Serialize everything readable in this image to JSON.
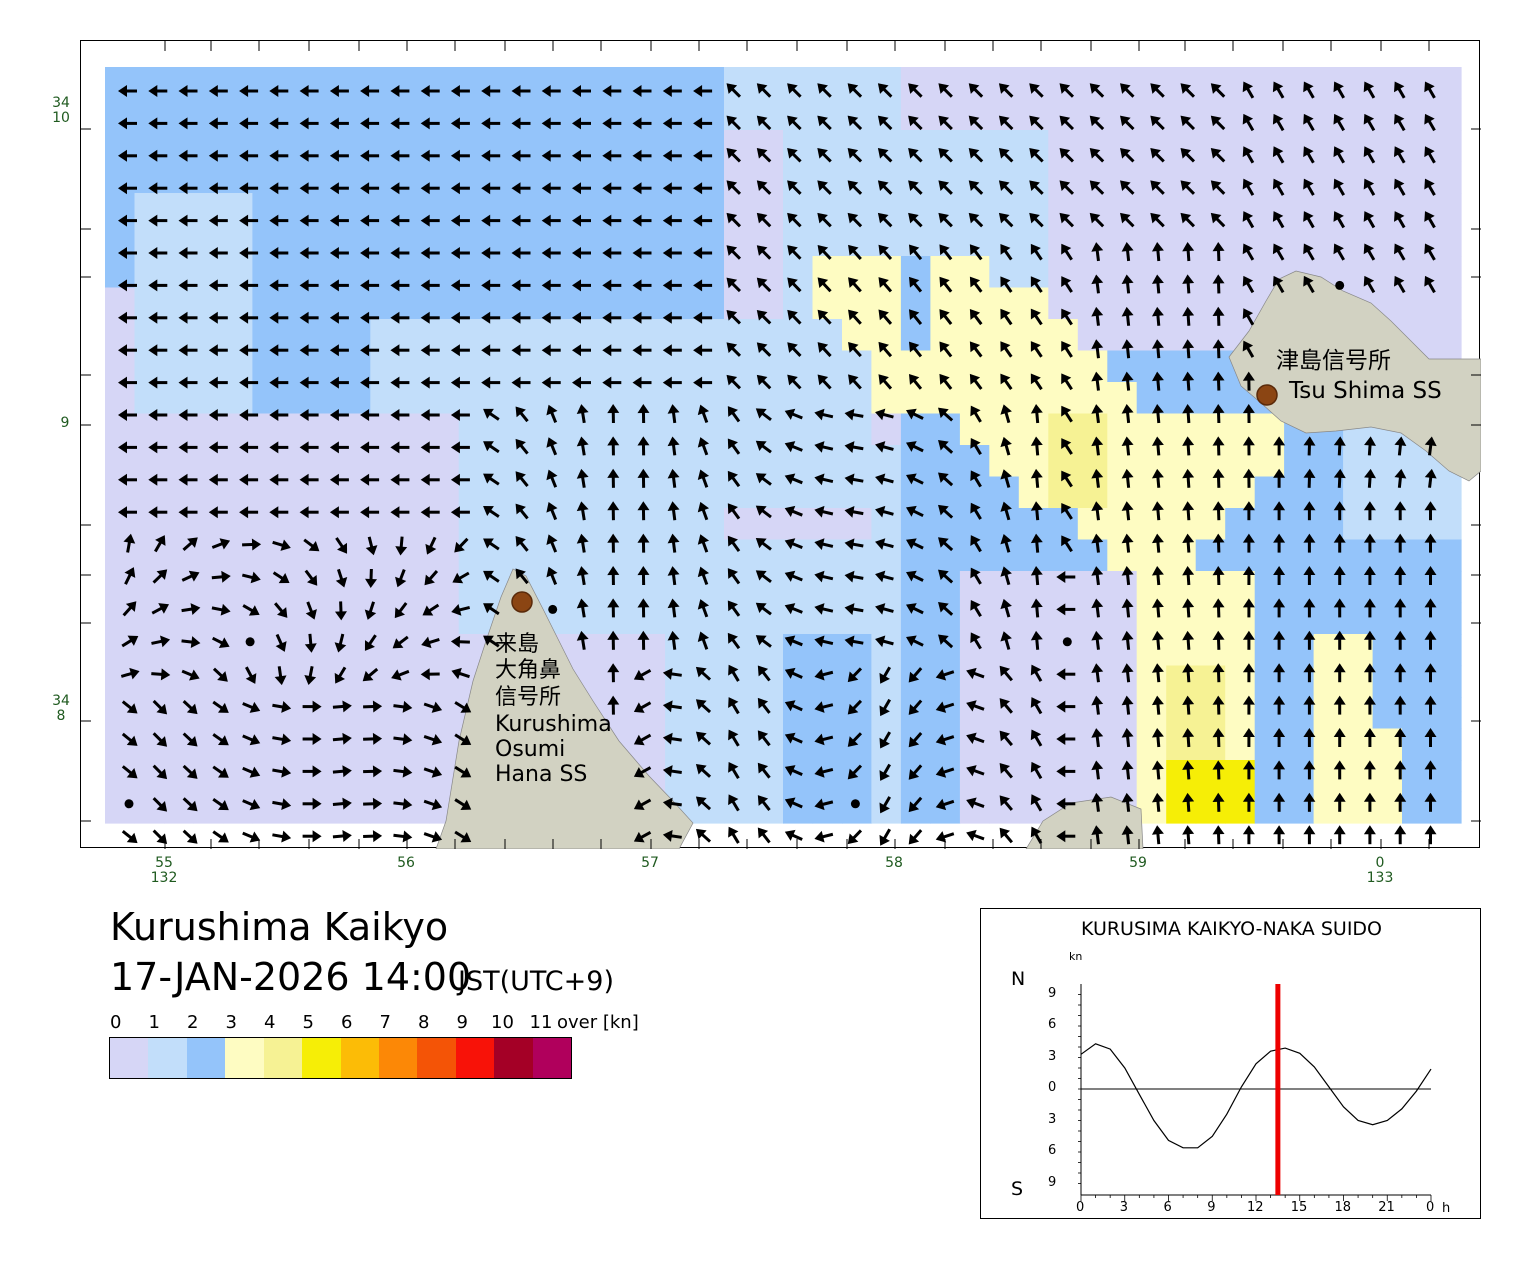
{
  "title": "Kurushima Kaikyo",
  "datetime": "17-JAN-2026 14:00",
  "timezone": "JST(UTC+9)",
  "legend": {
    "ticks": [
      "0",
      "1",
      "2",
      "3",
      "4",
      "5",
      "6",
      "7",
      "8",
      "9",
      "10",
      "11"
    ],
    "unit": "over [kn]",
    "colors": [
      "#d6d6f6",
      "#c2defa",
      "#94c4fa",
      "#fefcc2",
      "#f6f294",
      "#f6ee06",
      "#fcbc06",
      "#fc8806",
      "#f45406",
      "#f81208",
      "#a40026",
      "#b0005c"
    ]
  },
  "map": {
    "lat_labels": [
      {
        "deg": "34",
        "min": "10"
      },
      {
        "deg": "",
        "min": "9"
      },
      {
        "deg": "34",
        "min": "8"
      }
    ],
    "lon_labels": [
      {
        "min": "55",
        "deg": "132"
      },
      {
        "min": "56",
        "deg": ""
      },
      {
        "min": "57",
        "deg": ""
      },
      {
        "min": "58",
        "deg": ""
      },
      {
        "min": "59",
        "deg": ""
      },
      {
        "min": "0",
        "deg": "133"
      }
    ],
    "land_color": "#d2d2c2",
    "station_color": "#8b4513"
  },
  "stations": [
    {
      "name_ja_lines": [
        "来島",
        "大角鼻",
        "信号所"
      ],
      "name_en_lines": [
        "Kurushima",
        "Osumi",
        "Hana SS"
      ]
    },
    {
      "name_ja_lines": [
        "津島信号所"
      ],
      "name_en_lines": [
        "Tsu Shima SS"
      ]
    }
  ],
  "tide": {
    "title": "KURUSIMA KAIKYO-NAKA SUIDO",
    "unit": "kn",
    "north": "N",
    "south": "S",
    "y_ticks": [
      "9",
      "6",
      "3",
      "0",
      "3",
      "6",
      "9"
    ],
    "x_ticks": [
      "0",
      "3",
      "6",
      "9",
      "12",
      "15",
      "18",
      "21",
      "0"
    ],
    "x_unit": "h",
    "current_hour": 13.5,
    "curve_color": "#000000",
    "marker_color": "#ee0000",
    "series": [
      [
        0,
        3.3
      ],
      [
        1,
        4.3
      ],
      [
        2,
        3.8
      ],
      [
        3,
        2.0
      ],
      [
        4,
        -0.5
      ],
      [
        5,
        -3.0
      ],
      [
        6,
        -4.9
      ],
      [
        7,
        -5.6
      ],
      [
        8,
        -5.6
      ],
      [
        9,
        -4.5
      ],
      [
        10,
        -2.4
      ],
      [
        11,
        0.2
      ],
      [
        12,
        2.4
      ],
      [
        13,
        3.6
      ],
      [
        14,
        3.9
      ],
      [
        15,
        3.4
      ],
      [
        16,
        2.1
      ],
      [
        17,
        0.2
      ],
      [
        18,
        -1.7
      ],
      [
        19,
        -3.0
      ],
      [
        20,
        -3.4
      ],
      [
        21,
        -3.0
      ],
      [
        22,
        -1.9
      ],
      [
        23,
        -0.2
      ],
      [
        24,
        1.9
      ]
    ]
  }
}
